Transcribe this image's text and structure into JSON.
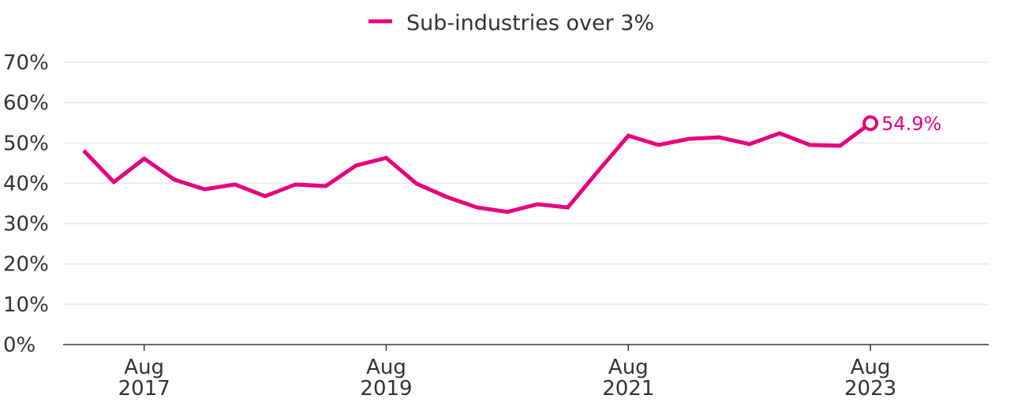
{
  "chart_data": {
    "type": "line",
    "title": "",
    "xlabel": "",
    "ylabel": "",
    "ylim": [
      0,
      70
    ],
    "yticks": [
      0,
      10,
      20,
      30,
      40,
      50,
      60,
      70
    ],
    "ytick_labels": [
      "0%",
      "10%",
      "20%",
      "30%",
      "40%",
      "50%",
      "60%",
      "70%"
    ],
    "xtick_labels": [
      {
        "month": "Aug",
        "year": "2017",
        "index": 2
      },
      {
        "month": "Aug",
        "year": "2019",
        "index": 10
      },
      {
        "month": "Aug",
        "year": "2021",
        "index": 18
      },
      {
        "month": "Aug",
        "year": "2023",
        "index": 26
      }
    ],
    "grid": true,
    "legend_position": "top-center",
    "x": [
      "Feb 2017",
      "May 2017",
      "Aug 2017",
      "Nov 2017",
      "Feb 2018",
      "May 2018",
      "Aug 2018",
      "Nov 2018",
      "Feb 2019",
      "May 2019",
      "Aug 2019",
      "Nov 2019",
      "Feb 2020",
      "May 2020",
      "Aug 2020",
      "Nov 2020",
      "Feb 2021",
      "May 2021",
      "Aug 2021",
      "Nov 2021",
      "Feb 2022",
      "May 2022",
      "Aug 2022",
      "Nov 2022",
      "Feb 2023",
      "May 2023",
      "Aug 2023"
    ],
    "series": [
      {
        "name": "Sub-industries over 3%",
        "color": "#e6007e",
        "values": [
          48.1,
          40.3,
          46.1,
          40.9,
          38.5,
          39.7,
          36.8,
          39.7,
          39.3,
          44.4,
          46.3,
          39.9,
          36.6,
          34.0,
          32.9,
          34.8,
          34.0,
          43.0,
          51.8,
          49.5,
          51.0,
          51.4,
          49.7,
          52.4,
          49.5,
          49.3,
          54.9
        ]
      }
    ],
    "annotation": {
      "label": "54.9%",
      "index": 26
    }
  }
}
